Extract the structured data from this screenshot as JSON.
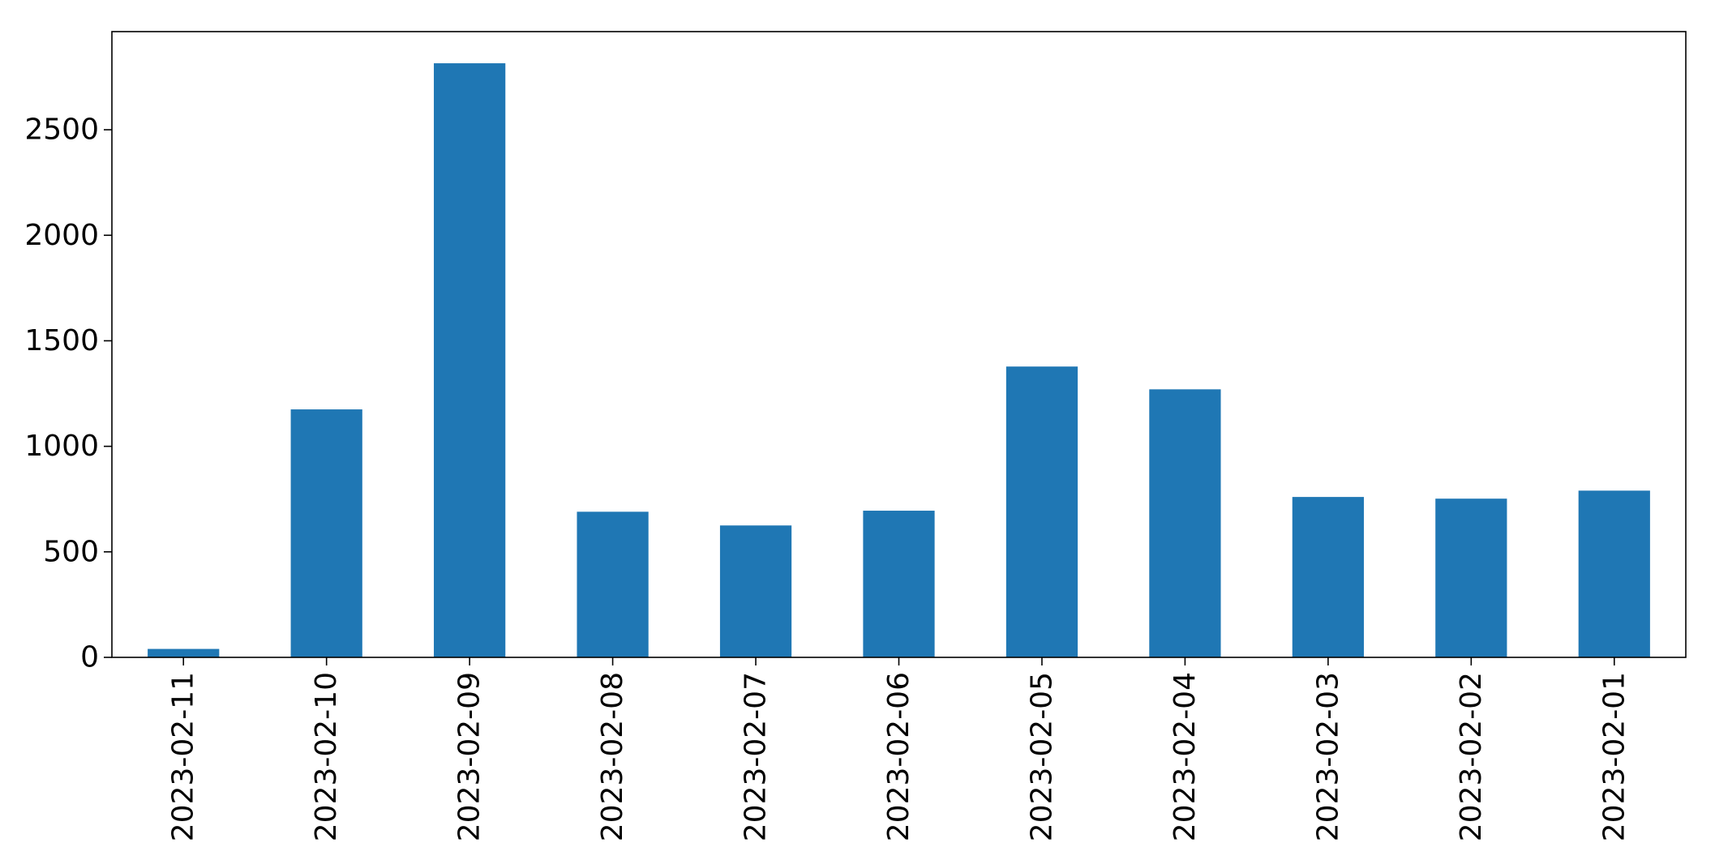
{
  "chart_data": {
    "type": "bar",
    "categories": [
      "2023-02-11",
      "2023-02-10",
      "2023-02-09",
      "2023-02-08",
      "2023-02-07",
      "2023-02-06",
      "2023-02-05",
      "2023-02-04",
      "2023-02-03",
      "2023-02-02",
      "2023-02-01"
    ],
    "values": [
      40,
      1175,
      2815,
      690,
      625,
      695,
      1378,
      1270,
      760,
      752,
      790
    ],
    "title": "",
    "xlabel": "",
    "ylabel": "",
    "ylim": [
      0,
      2965
    ],
    "yticks": [
      0,
      500,
      1000,
      1500,
      2000,
      2500
    ],
    "ytick_labels": [
      "0",
      "500",
      "1000",
      "1500",
      "2000",
      "2500"
    ],
    "bar_color": "#1f77b4",
    "grid": false,
    "legend": "none"
  }
}
